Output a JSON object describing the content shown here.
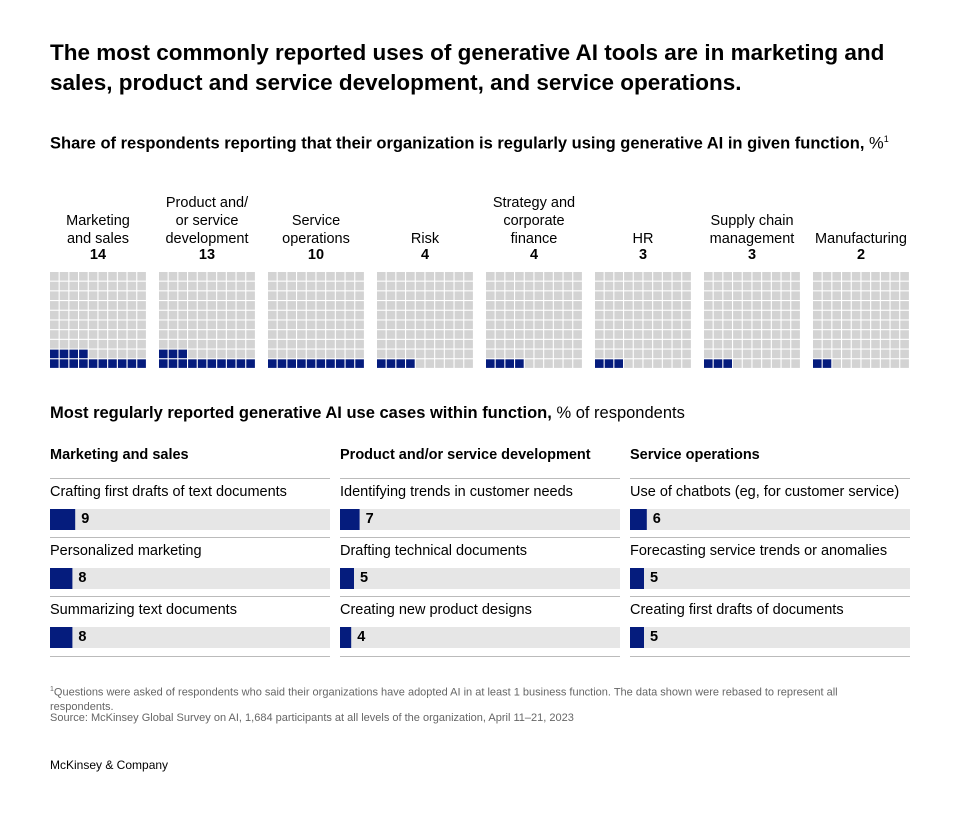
{
  "title": "The most commonly reported uses of generative AI tools are in marketing and sales, product and service development, and service operations.",
  "chart_data": [
    {
      "type": "waffle",
      "subtitle": "Share of respondents reporting that their organization is regularly using generative AI in given function,",
      "unit": "%",
      "footnote_mark": "1",
      "categories": [
        "Marketing\nand sales",
        "Product and/\nor service\ndevelopment",
        "Service\noperations",
        "Risk",
        "Strategy and\ncorporate\nfinance",
        "HR",
        "Supply chain\nmanagement",
        "Manufacturing"
      ],
      "values": [
        14,
        13,
        10,
        4,
        4,
        3,
        3,
        2
      ],
      "color": "#051c7d",
      "empty_color": "#d3d3d3"
    },
    {
      "type": "bar",
      "title": "Marketing and sales",
      "categories": [
        "Crafting first drafts of text documents",
        "Personalized marketing",
        "Summarizing text documents"
      ],
      "values": [
        9,
        8,
        8
      ],
      "color": "#051c7d",
      "track_color": "#e6e6e6"
    },
    {
      "type": "bar",
      "title": "Product and/or service development",
      "categories": [
        "Identifying trends in customer needs",
        "Drafting technical documents",
        "Creating new product designs"
      ],
      "values": [
        7,
        5,
        4
      ],
      "color": "#051c7d",
      "track_color": "#e6e6e6"
    },
    {
      "type": "bar",
      "title": "Service operations",
      "categories": [
        "Use of chatbots (eg, for customer service)",
        "Forecasting service trends or anomalies",
        "Creating first drafts of documents"
      ],
      "values": [
        6,
        5,
        5
      ],
      "color": "#051c7d",
      "track_color": "#e6e6e6"
    }
  ],
  "section_title": "Most regularly reported generative AI use cases within function,",
  "section_unit": "% of respondents",
  "footnote": "Questions were asked of respondents who said their organizations have adopted AI in at least 1 business function. The data shown were rebased to represent all respondents.",
  "source": "Source: McKinsey Global Survey on AI, 1,684 participants at all levels of the organization, April 11–21, 2023",
  "brand": "McKinsey & Company"
}
